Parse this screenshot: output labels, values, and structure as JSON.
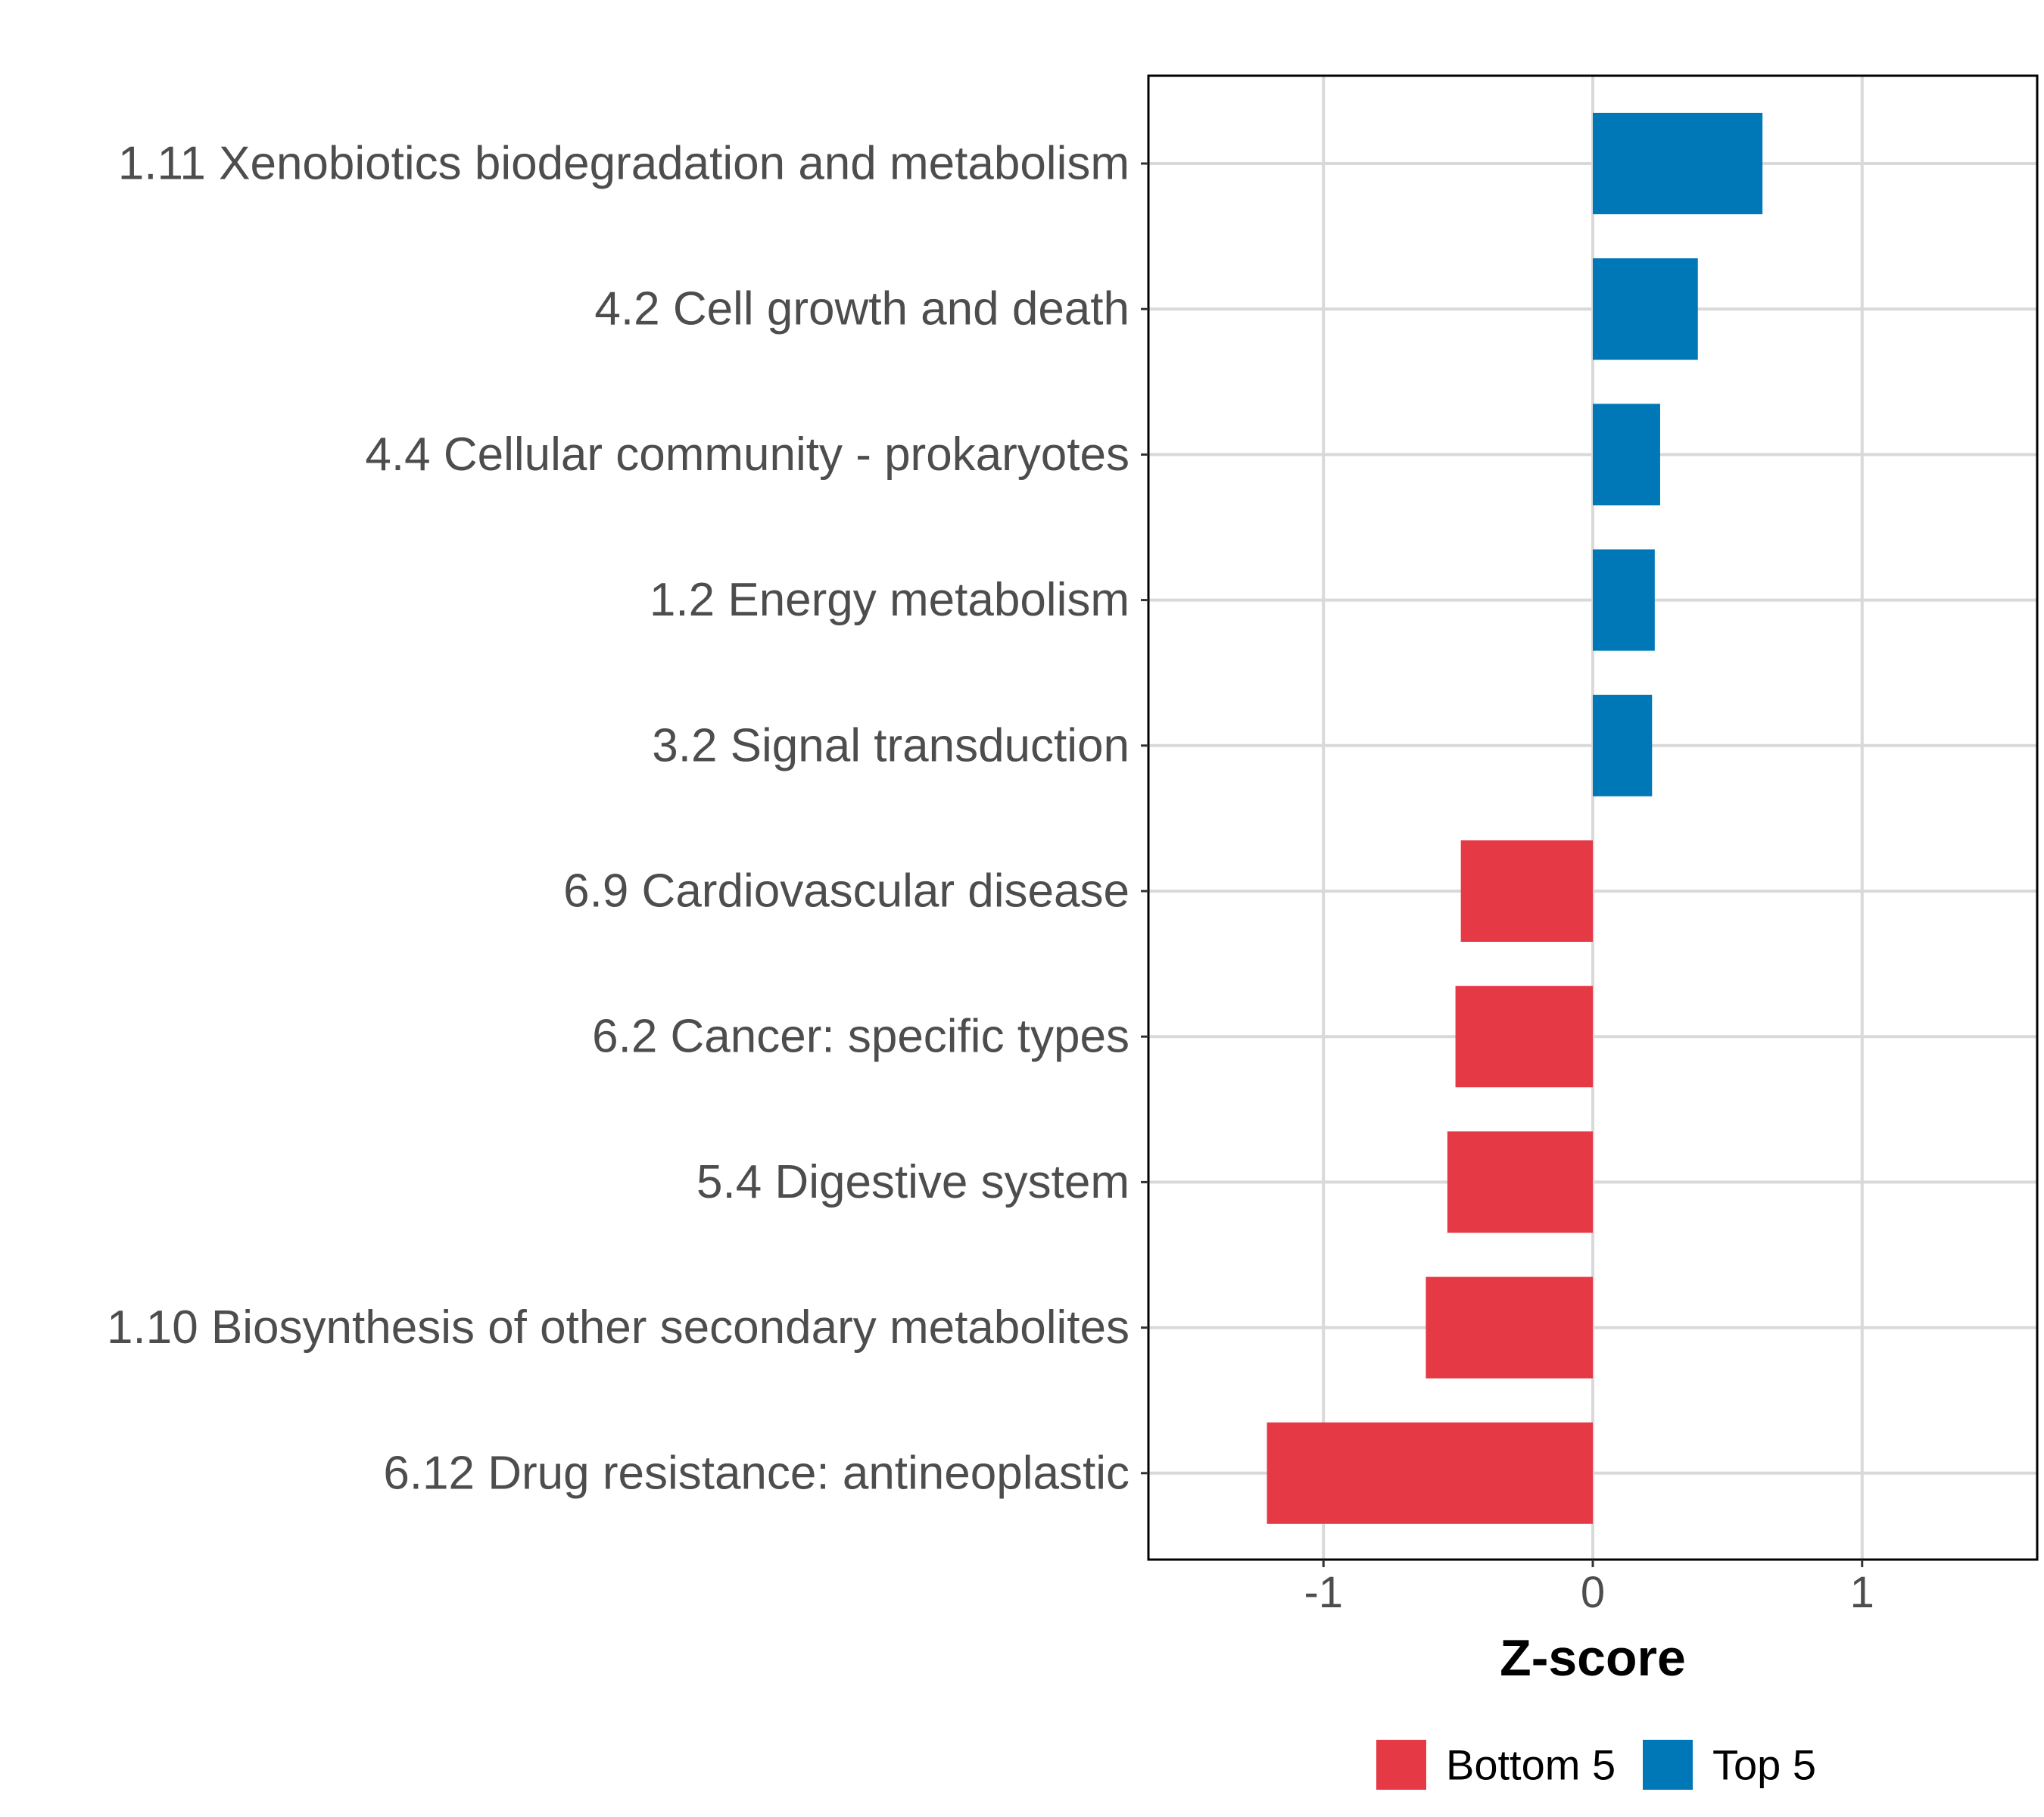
{
  "chart_data": {
    "type": "bar",
    "orientation": "horizontal",
    "categories": [
      "1.11 Xenobiotics biodegradation and metabolism",
      "4.2 Cell growth and death",
      "4.4 Cellular community - prokaryotes",
      "1.2 Energy metabolism",
      "3.2 Signal transduction",
      "6.9 Cardiovascular disease",
      "6.2 Cancer: specific types",
      "5.4 Digestive system",
      "1.10 Biosynthesis of other secondary metabolites",
      "6.12 Drug resistance: antineoplastic"
    ],
    "values": [
      0.63,
      0.39,
      0.25,
      0.23,
      0.22,
      -0.49,
      -0.51,
      -0.54,
      -0.62,
      -1.21
    ],
    "groups": [
      "Top 5",
      "Top 5",
      "Top 5",
      "Top 5",
      "Top 5",
      "Bottom 5",
      "Bottom 5",
      "Bottom 5",
      "Bottom 5",
      "Bottom 5"
    ],
    "xlabel": "Z-score",
    "ylabel": "",
    "xlim": [
      -1.65,
      1.65
    ],
    "xticks": [
      -1,
      0,
      1
    ],
    "xtick_labels": [
      "-1",
      "0",
      "1"
    ],
    "grid": true,
    "legend": {
      "position": "bottom",
      "entries": [
        {
          "label": "Bottom 5",
          "color": "#E63946"
        },
        {
          "label": "Top 5",
          "color": "#0077B6"
        }
      ]
    }
  },
  "colors": {
    "top": "#0077B6",
    "bottom": "#E63946",
    "grid": "#D9D9D9",
    "text": "#4D4D4D"
  }
}
